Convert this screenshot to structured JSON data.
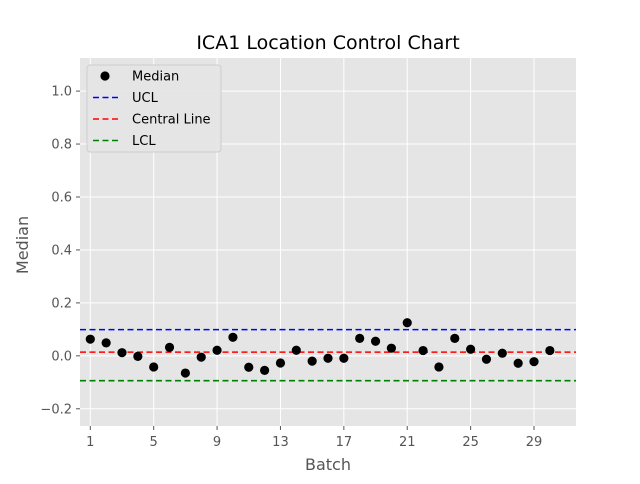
{
  "chart_data": {
    "type": "scatter",
    "title": "ICA1 Location Control Chart",
    "xlabel": "Batch",
    "ylabel": "Median",
    "xlim": [
      0.35,
      31.65
    ],
    "ylim": [
      -0.265,
      1.125
    ],
    "xticks": [
      1,
      5,
      9,
      13,
      17,
      21,
      25,
      29
    ],
    "xtick_labels": [
      "1",
      "5",
      "9",
      "13",
      "17",
      "21",
      "25",
      "29"
    ],
    "yticks": [
      -0.2,
      0.0,
      0.2,
      0.4,
      0.6,
      0.8,
      1.0
    ],
    "ytick_labels": [
      "−0.2",
      "0.0",
      "0.2",
      "0.4",
      "0.6",
      "0.8",
      "1.0"
    ],
    "grid": true,
    "legend_position": "top-left",
    "series": [
      {
        "name": "Median",
        "kind": "scatter",
        "color": "#000000",
        "x": [
          1,
          2,
          3,
          4,
          5,
          6,
          7,
          8,
          9,
          10,
          11,
          12,
          13,
          14,
          15,
          16,
          17,
          18,
          19,
          20,
          21,
          22,
          23,
          24,
          25,
          26,
          27,
          28,
          29,
          30
        ],
        "y": [
          0.063,
          0.049,
          0.012,
          -0.002,
          -0.042,
          0.032,
          -0.065,
          -0.005,
          0.021,
          0.07,
          -0.043,
          -0.055,
          -0.027,
          0.021,
          -0.02,
          -0.009,
          -0.009,
          0.066,
          0.055,
          0.029,
          0.125,
          0.02,
          -0.042,
          0.066,
          0.025,
          -0.013,
          0.01,
          -0.028,
          -0.022,
          0.02
        ]
      },
      {
        "name": "UCL",
        "kind": "hline",
        "y": 0.099,
        "color": "#0000ff",
        "dash": "dashed"
      },
      {
        "name": "Central Line",
        "kind": "hline",
        "y": 0.014,
        "color": "#ff0000",
        "dash": "dashed"
      },
      {
        "name": "LCL",
        "kind": "hline",
        "y": -0.094,
        "color": "#008000",
        "dash": "dashed"
      }
    ]
  },
  "colors": {
    "plot_background": "#e5e5e5",
    "grid": "#ffffff",
    "tick_text": "#555555",
    "title_text": "#000000"
  }
}
